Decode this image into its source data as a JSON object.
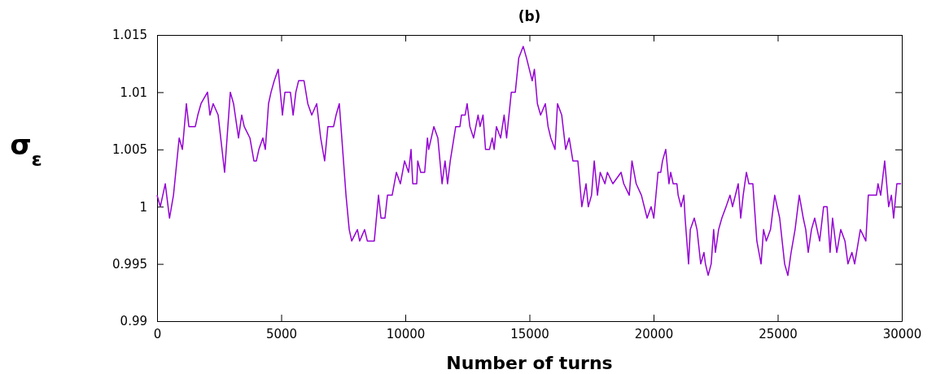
{
  "chart_data": {
    "type": "line",
    "title": "(b)",
    "xlabel": "Number of turns",
    "ylabel": "σ$_{ε}$",
    "xlim": [
      0,
      30000
    ],
    "xticks": [
      0,
      5000,
      10000,
      15000,
      20000,
      25000,
      30000
    ],
    "ylim": [
      0.99,
      1.015
    ],
    "yticks": [
      0.99,
      0.995,
      1,
      1.005,
      1.01,
      1.015
    ],
    "series": [
      {
        "color": "#9400d3",
        "x": [
          0,
          130,
          330,
          500,
          660,
          890,
          1020,
          1180,
          1280,
          1540,
          1640,
          1770,
          2030,
          2130,
          2260,
          2460,
          2720,
          2950,
          3080,
          3280,
          3410,
          3510,
          3740,
          3900,
          4000,
          4100,
          4260,
          4360,
          4490,
          4590,
          4720,
          4880,
          5050,
          5150,
          5370,
          5480,
          5590,
          5700,
          5920,
          6070,
          6230,
          6430,
          6590,
          6750,
          6880,
          7110,
          7210,
          7340,
          7610,
          7740,
          7840,
          8070,
          8160,
          8360,
          8470,
          8750,
          8920,
          9020,
          9180,
          9280,
          9470,
          9640,
          9800,
          9970,
          10130,
          10230,
          10300,
          10460,
          10500,
          10620,
          10780,
          10890,
          10940,
          11150,
          11310,
          11480,
          11600,
          11700,
          11810,
          12030,
          12200,
          12260,
          12410,
          12490,
          12600,
          12750,
          12930,
          13010,
          13130,
          13230,
          13390,
          13500,
          13580,
          13670,
          13840,
          13980,
          14080,
          14270,
          14430,
          14570,
          14750,
          14880,
          15110,
          15200,
          15320,
          15450,
          15640,
          15750,
          15860,
          16030,
          16130,
          16300,
          16460,
          16600,
          16750,
          16950,
          17110,
          17280,
          17370,
          17500,
          17610,
          17740,
          17850,
          18040,
          18140,
          18360,
          18690,
          18800,
          19020,
          19130,
          19300,
          19510,
          19740,
          19900,
          20010,
          20180,
          20290,
          20360,
          20490,
          20620,
          20690,
          20790,
          20940,
          20990,
          21110,
          21220,
          21270,
          21410,
          21480,
          21640,
          21750,
          21900,
          22030,
          22090,
          22200,
          22320,
          22420,
          22490,
          22620,
          22750,
          22920,
          23080,
          23180,
          23410,
          23510,
          23610,
          23740,
          23840,
          24000,
          24160,
          24330,
          24430,
          24540,
          24710,
          24880,
          25080,
          25280,
          25410,
          25540,
          25700,
          25870,
          26030,
          26130,
          26230,
          26360,
          26490,
          26690,
          26850,
          26990,
          27110,
          27210,
          27380,
          27540,
          27710,
          27830,
          27990,
          28100,
          28330,
          28550,
          28650,
          28980,
          29040,
          29150,
          29310,
          29470,
          29580,
          29670,
          29800,
          29970
        ],
        "values": [
          1.001,
          1.0,
          1.002,
          0.999,
          1.001,
          1.006,
          1.005,
          1.009,
          1.007,
          1.007,
          1.008,
          1.009,
          1.01,
          1.008,
          1.009,
          1.008,
          1.003,
          1.01,
          1.009,
          1.006,
          1.008,
          1.007,
          1.006,
          1.004,
          1.004,
          1.005,
          1.006,
          1.005,
          1.009,
          1.01,
          1.011,
          1.012,
          1.008,
          1.01,
          1.01,
          1.008,
          1.01,
          1.011,
          1.011,
          1.009,
          1.008,
          1.009,
          1.006,
          1.004,
          1.007,
          1.007,
          1.008,
          1.009,
          1.001,
          0.998,
          0.997,
          0.998,
          0.997,
          0.998,
          0.997,
          0.997,
          1.001,
          0.999,
          0.999,
          1.001,
          1.001,
          1.003,
          1.002,
          1.004,
          1.003,
          1.005,
          1.002,
          1.002,
          1.004,
          1.003,
          1.003,
          1.006,
          1.005,
          1.007,
          1.006,
          1.002,
          1.004,
          1.002,
          1.004,
          1.007,
          1.007,
          1.008,
          1.008,
          1.009,
          1.007,
          1.006,
          1.008,
          1.007,
          1.008,
          1.005,
          1.005,
          1.006,
          1.005,
          1.007,
          1.006,
          1.008,
          1.006,
          1.01,
          1.01,
          1.013,
          1.014,
          1.013,
          1.011,
          1.012,
          1.009,
          1.008,
          1.009,
          1.007,
          1.006,
          1.005,
          1.009,
          1.008,
          1.005,
          1.006,
          1.004,
          1.004,
          1.0,
          1.002,
          1.0,
          1.001,
          1.004,
          1.001,
          1.003,
          1.002,
          1.003,
          1.002,
          1.003,
          1.002,
          1.001,
          1.004,
          1.002,
          1.001,
          0.999,
          1.0,
          0.999,
          1.003,
          1.003,
          1.004,
          1.005,
          1.002,
          1.003,
          1.002,
          1.002,
          1.001,
          1.0,
          1.001,
          0.999,
          0.995,
          0.998,
          0.999,
          0.998,
          0.995,
          0.996,
          0.995,
          0.994,
          0.995,
          0.998,
          0.996,
          0.998,
          0.999,
          1.0,
          1.001,
          1.0,
          1.002,
          0.999,
          1.001,
          1.003,
          1.002,
          1.002,
          0.997,
          0.995,
          0.998,
          0.997,
          0.998,
          1.001,
          0.999,
          0.995,
          0.994,
          0.996,
          0.998,
          1.001,
          0.999,
          0.998,
          0.996,
          0.998,
          0.999,
          0.997,
          1.0,
          1.0,
          0.996,
          0.999,
          0.996,
          0.998,
          0.997,
          0.995,
          0.996,
          0.995,
          0.998,
          0.997,
          1.001,
          1.001,
          1.002,
          1.001,
          1.004,
          1.0,
          1.001,
          0.999,
          1.002,
          1.002
        ]
      }
    ]
  }
}
